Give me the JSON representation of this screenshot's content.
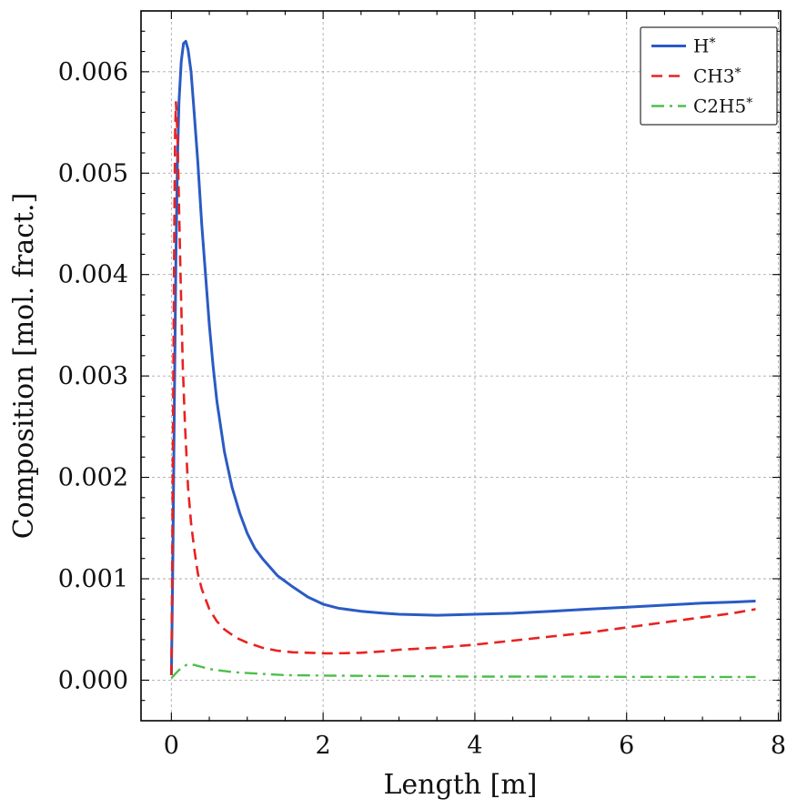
{
  "figure": {
    "background": "#ffffff"
  },
  "chart_data": {
    "type": "line",
    "title": "",
    "xlabel": "Length [m]",
    "ylabel": "Composition [mol. fract.]",
    "xlim": [
      -0.4,
      8.03
    ],
    "ylim": [
      -0.0004,
      0.0066
    ],
    "xticks": [
      0,
      2,
      4,
      6,
      8
    ],
    "xtick_labels": [
      "0",
      "2",
      "4",
      "6",
      "8"
    ],
    "yticks": [
      0,
      0.001,
      0.002,
      0.003,
      0.004,
      0.005,
      0.006
    ],
    "ytick_labels": [
      "0.000",
      "0.001",
      "0.002",
      "0.003",
      "0.004",
      "0.005",
      "0.006"
    ],
    "grid": true,
    "grid_color": "#ababab",
    "frame_color": "#000000",
    "legend_position": "upper right",
    "series": [
      {
        "name": "H*",
        "color": "#2a5bc4",
        "style": "solid",
        "width": 3,
        "points": [
          [
            0,
            5e-05
          ],
          [
            0.02,
            0.0012
          ],
          [
            0.04,
            0.0028
          ],
          [
            0.06,
            0.0042
          ],
          [
            0.08,
            0.0051
          ],
          [
            0.1,
            0.0057
          ],
          [
            0.13,
            0.0061
          ],
          [
            0.16,
            0.00628
          ],
          [
            0.19,
            0.0063
          ],
          [
            0.22,
            0.00622
          ],
          [
            0.26,
            0.006
          ],
          [
            0.3,
            0.0056
          ],
          [
            0.35,
            0.0051
          ],
          [
            0.4,
            0.0045
          ],
          [
            0.45,
            0.004
          ],
          [
            0.5,
            0.0035
          ],
          [
            0.55,
            0.0031
          ],
          [
            0.6,
            0.00275
          ],
          [
            0.7,
            0.00225
          ],
          [
            0.8,
            0.0019
          ],
          [
            0.9,
            0.00165
          ],
          [
            1.0,
            0.00145
          ],
          [
            1.1,
            0.0013
          ],
          [
            1.2,
            0.0012
          ],
          [
            1.4,
            0.00103
          ],
          [
            1.6,
            0.00092
          ],
          [
            1.8,
            0.00082
          ],
          [
            2.0,
            0.00075
          ],
          [
            2.2,
            0.00071
          ],
          [
            2.5,
            0.00068
          ],
          [
            2.8,
            0.00066
          ],
          [
            3.0,
            0.00065
          ],
          [
            3.5,
            0.00064
          ],
          [
            4.0,
            0.00065
          ],
          [
            4.5,
            0.00066
          ],
          [
            5.0,
            0.00068
          ],
          [
            5.5,
            0.0007
          ],
          [
            6.0,
            0.00072
          ],
          [
            6.5,
            0.00074
          ],
          [
            7.0,
            0.00076
          ],
          [
            7.4,
            0.00077
          ],
          [
            7.7,
            0.00078
          ]
        ]
      },
      {
        "name": "CH3*",
        "color": "#e82222",
        "style": "dashed",
        "width": 2.6,
        "points": [
          [
            0,
            5e-05
          ],
          [
            0.01,
            0.001
          ],
          [
            0.02,
            0.0022
          ],
          [
            0.03,
            0.0035
          ],
          [
            0.04,
            0.0046
          ],
          [
            0.05,
            0.0054
          ],
          [
            0.06,
            0.0057
          ],
          [
            0.08,
            0.0054
          ],
          [
            0.1,
            0.0047
          ],
          [
            0.12,
            0.004
          ],
          [
            0.15,
            0.0031
          ],
          [
            0.18,
            0.0025
          ],
          [
            0.22,
            0.0019
          ],
          [
            0.26,
            0.00155
          ],
          [
            0.3,
            0.0013
          ],
          [
            0.35,
            0.00105
          ],
          [
            0.4,
            0.0009
          ],
          [
            0.5,
            0.0007
          ],
          [
            0.6,
            0.00058
          ],
          [
            0.7,
            0.0005
          ],
          [
            0.85,
            0.00042
          ],
          [
            1.0,
            0.00037
          ],
          [
            1.2,
            0.00032
          ],
          [
            1.4,
            0.00029
          ],
          [
            1.6,
            0.000275
          ],
          [
            1.8,
            0.00027
          ],
          [
            2.0,
            0.000265
          ],
          [
            2.2,
            0.000265
          ],
          [
            2.5,
            0.00027
          ],
          [
            2.8,
            0.000285
          ],
          [
            3.0,
            0.0003
          ],
          [
            3.5,
            0.00032
          ],
          [
            4.0,
            0.00035
          ],
          [
            4.5,
            0.00039
          ],
          [
            5.0,
            0.00043
          ],
          [
            5.5,
            0.00047
          ],
          [
            6.0,
            0.00052
          ],
          [
            6.5,
            0.00057
          ],
          [
            7.0,
            0.00062
          ],
          [
            7.4,
            0.00066
          ],
          [
            7.7,
            0.0007
          ]
        ]
      },
      {
        "name": "C2H5*",
        "color": "#4cbf4b",
        "style": "dashdot",
        "width": 2.4,
        "points": [
          [
            0,
            2e-05
          ],
          [
            0.05,
            6e-05
          ],
          [
            0.1,
            0.0001
          ],
          [
            0.15,
            0.00013
          ],
          [
            0.2,
            0.00015
          ],
          [
            0.25,
            0.000155
          ],
          [
            0.3,
            0.00015
          ],
          [
            0.4,
            0.00013
          ],
          [
            0.5,
            0.00011
          ],
          [
            0.6,
            0.0001
          ],
          [
            0.8,
            8e-05
          ],
          [
            1.0,
            7e-05
          ],
          [
            1.5,
            5e-05
          ],
          [
            2.0,
            4.5e-05
          ],
          [
            3.0,
            4e-05
          ],
          [
            4.0,
            3.5e-05
          ],
          [
            5.0,
            3.5e-05
          ],
          [
            6.0,
            3.3e-05
          ],
          [
            7.0,
            3.2e-05
          ],
          [
            7.7,
            3.2e-05
          ]
        ]
      }
    ]
  }
}
